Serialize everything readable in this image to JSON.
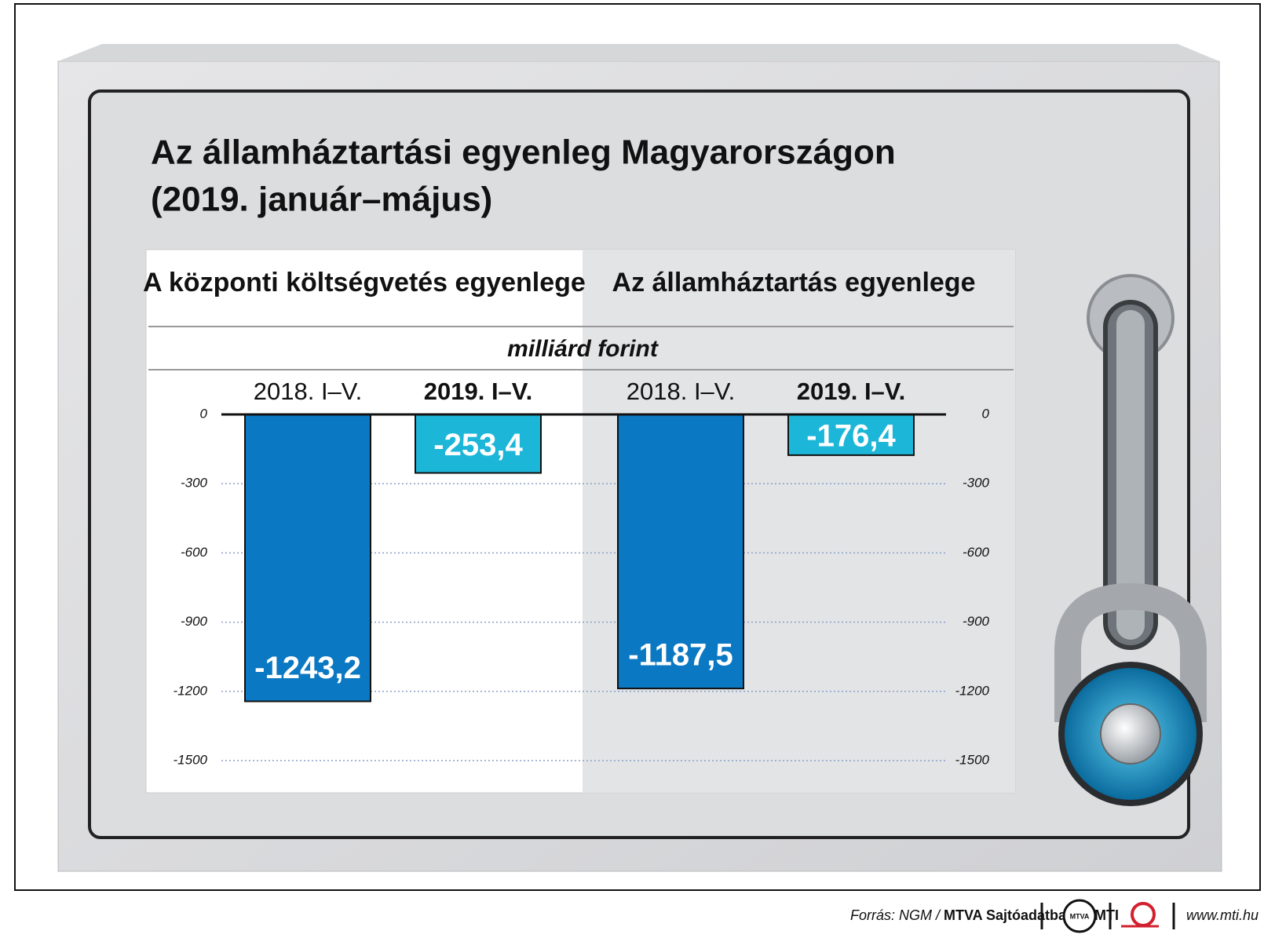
{
  "chart_data": {
    "type": "bar",
    "title": "Az államháztartási egyenleg Magyarországon",
    "subtitle": "(2019. január–május)",
    "groups": [
      "A központi költségvetés egyenlege",
      "Az államháztartás egyenlege"
    ],
    "unit": "milliárd forint",
    "categories": [
      "2018. I–V.",
      "2019. I–V.",
      "2018. I–V.",
      "2019. I–V."
    ],
    "values": [
      -1243.2,
      -253.4,
      -1187.5,
      -176.4
    ],
    "value_labels": [
      "-1243,2",
      "-253,4",
      "-1187,5",
      "-176,4"
    ],
    "colors": [
      "#0a78c2",
      "#1cb6d8",
      "#0a78c2",
      "#1cb6d8"
    ],
    "ylim": [
      -1500,
      0
    ],
    "yticks": [
      0,
      -300,
      -600,
      -900,
      -1200,
      -1500
    ],
    "grid": true
  },
  "footer": {
    "source_prefix": "Forrás: NGM /",
    "source_main": "MTVA Sajtóadatbank / MTI",
    "logo": "MTVA",
    "url": "www.mti.hu"
  }
}
